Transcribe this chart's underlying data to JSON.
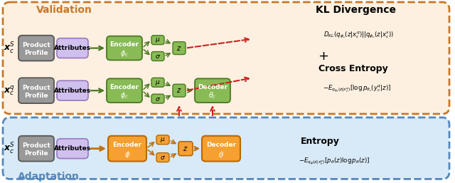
{
  "fig_width": 6.4,
  "fig_height": 2.57,
  "dpi": 100,
  "val_bg": "#fdf0e0",
  "val_border": "#c87828",
  "adp_bg": "#d8eaf8",
  "adp_border": "#5588bb",
  "green_face": "#88bb55",
  "green_edge": "#4a7820",
  "orange_face": "#f5a030",
  "orange_edge": "#b86800",
  "gray_face": "#999999",
  "gray_edge": "#555555",
  "lav_face": "#d0c0ee",
  "lav_edge": "#9878c0",
  "garrow": "#4a7820",
  "oarrow": "#c07010",
  "rarrow": "#cc2222",
  "kl_text": "$D_{KL}(q_{\\phi_c}(z|x_c^q)||q_{\\phi_c}(z|x_c^s))$",
  "ce_text": "$-E_{q_{\\phi_c}(z|x_c^q)}[\\log p_{\\theta_c}(y_c^q|z)]$",
  "ent_text": "$-E_{q_\\phi(z|x_c^q)}[p_\\theta(z)\\log p_\\theta(z)]$"
}
